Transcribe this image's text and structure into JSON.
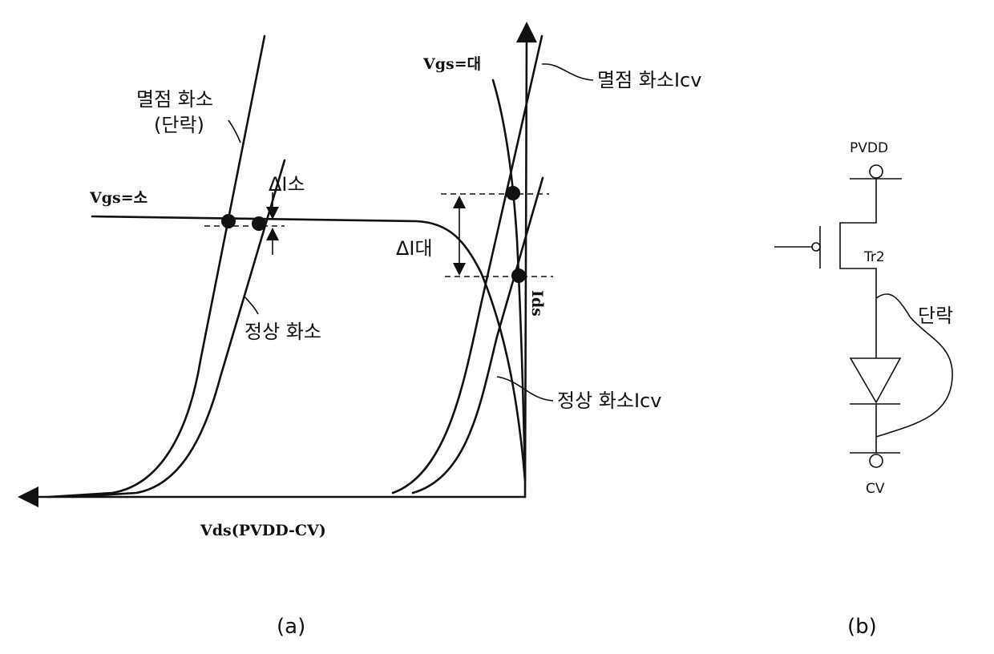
{
  "graph_a": {
    "labels": {
      "defect_pixel": "멸점 화소",
      "short": "(단락)",
      "vgs_small": "Vgs=소",
      "delta_i_small": "ΔI소",
      "delta_i_large": "ΔI대",
      "normal_pixel": "정상 화소",
      "vgs_large": "Vgs=대",
      "defect_pixel_icv": "멸점 화소Icv",
      "normal_pixel_icv": "정상 화소Icv",
      "y_axis": "Ids",
      "x_axis": "Vds(PVDD-CV)"
    },
    "caption": "(a)"
  },
  "circuit_b": {
    "labels": {
      "pvdd": "PVDD",
      "transistor": "Tr2",
      "short": "단락",
      "cv": "CV"
    },
    "caption": "(b)"
  }
}
